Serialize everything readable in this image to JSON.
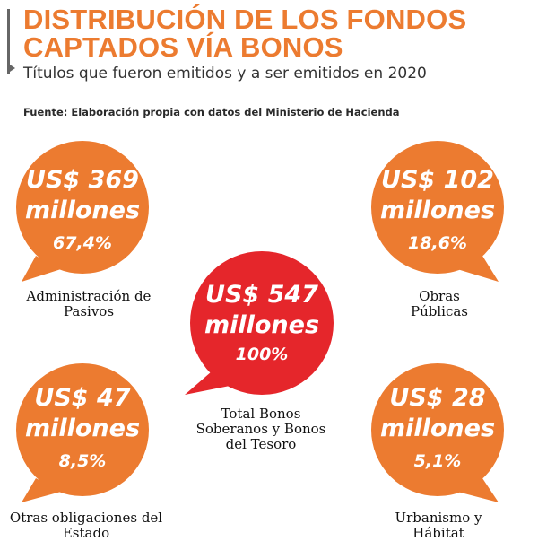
{
  "header": {
    "title_line1": "DISTRIBUCIÓN DE LOS FONDOS",
    "title_line2": "CAPTADOS VÍA BONOS",
    "subtitle": "Títulos que fueron emitidos y a ser emitidos en 2020",
    "source": "Fuente: Elaboración propia con datos del Ministerio de Hacienda"
  },
  "colors": {
    "orange": "#ec7b30",
    "red": "#e5262b",
    "title": "#ec7b30"
  },
  "chart_data": {
    "type": "bubble",
    "title": "DISTRIBUCIÓN DE LOS FONDOS CAPTADOS VÍA BONOS",
    "subtitle": "Títulos que fueron emitidos y a ser emitidos en 2020",
    "unit": "millones",
    "items": [
      {
        "amount": "US$ 369",
        "unit": "millones",
        "value": 369,
        "percent": "67,4%",
        "label": "Administración de Pasivos",
        "color": "#ec7b30"
      },
      {
        "amount": "US$ 102",
        "unit": "millones",
        "value": 102,
        "percent": "18,6%",
        "label": "Obras Públicas",
        "color": "#ec7b30"
      },
      {
        "amount": "US$ 547",
        "unit": "millones",
        "value": 547,
        "percent": "100%",
        "label": "Total Bonos Soberanos y Bonos del Tesoro",
        "color": "#e5262b"
      },
      {
        "amount": "US$ 47",
        "unit": "millones",
        "value": 47,
        "percent": "8,5%",
        "label": "Otras obligaciones del Estado",
        "color": "#ec7b30"
      },
      {
        "amount": "US$ 28",
        "unit": "millones",
        "value": 28,
        "percent": "5,1%",
        "label": "Urbanismo y Hábitat",
        "color": "#ec7b30"
      }
    ]
  }
}
